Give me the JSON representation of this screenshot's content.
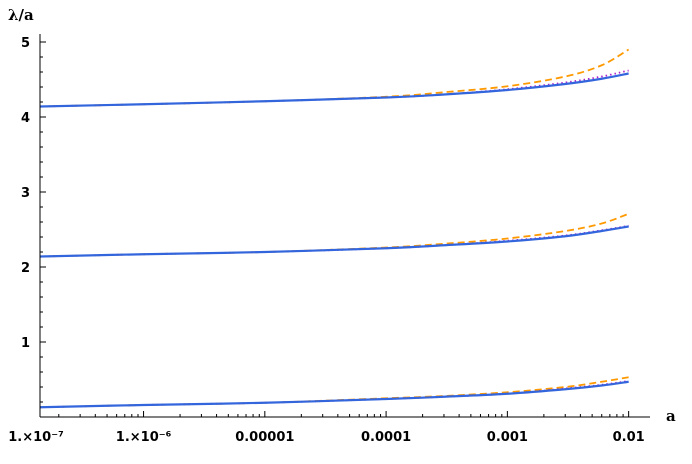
{
  "chart_data": {
    "type": "line",
    "title": "",
    "xlabel": "a",
    "ylabel": "λ/a",
    "xscale": "log",
    "xlim": [
      1.4e-07,
      0.0115
    ],
    "ylim": [
      0,
      5
    ],
    "grid": false,
    "legend": "none",
    "x_ticks": [
      {
        "value": 1e-07,
        "label": "1.×10⁻⁷"
      },
      {
        "value": 1e-06,
        "label": "1.×10⁻⁶"
      },
      {
        "value": 1e-05,
        "label": "0.00001"
      },
      {
        "value": 0.0001,
        "label": "0.0001"
      },
      {
        "value": 0.001,
        "label": "0.001"
      },
      {
        "value": 0.01,
        "label": "0.01"
      }
    ],
    "y_ticks": [
      {
        "value": 1,
        "label": "1"
      },
      {
        "value": 2,
        "label": "2"
      },
      {
        "value": 3,
        "label": "3"
      },
      {
        "value": 4,
        "label": "4"
      },
      {
        "value": 5,
        "label": "5"
      }
    ],
    "x": [
      1.4e-07,
      1e-06,
      1e-05,
      0.0001,
      0.0003,
      0.001,
      0.003,
      0.006,
      0.01
    ],
    "series": [
      {
        "style": "solid",
        "color": "#3366dd",
        "values": [
          0.13,
          0.16,
          0.19,
          0.24,
          0.27,
          0.31,
          0.37,
          0.42,
          0.47
        ]
      },
      {
        "style": "dotted",
        "color": "#aa22cc",
        "values": [
          0.13,
          0.16,
          0.19,
          0.24,
          0.27,
          0.31,
          0.38,
          0.43,
          0.48
        ]
      },
      {
        "style": "dashed",
        "color": "#ff9900",
        "values": [
          0.13,
          0.16,
          0.19,
          0.25,
          0.28,
          0.33,
          0.4,
          0.47,
          0.53
        ]
      },
      {
        "style": "solid",
        "color": "#3366dd",
        "values": [
          2.14,
          2.17,
          2.2,
          2.25,
          2.29,
          2.34,
          2.41,
          2.48,
          2.54
        ]
      },
      {
        "style": "dotted",
        "color": "#aa22cc",
        "values": [
          2.14,
          2.17,
          2.2,
          2.25,
          2.29,
          2.35,
          2.42,
          2.49,
          2.55
        ]
      },
      {
        "style": "dashed",
        "color": "#ff9900",
        "values": [
          2.14,
          2.17,
          2.2,
          2.26,
          2.31,
          2.38,
          2.48,
          2.58,
          2.71
        ]
      },
      {
        "style": "solid",
        "color": "#3366dd",
        "values": [
          4.14,
          4.17,
          4.21,
          4.26,
          4.3,
          4.36,
          4.44,
          4.51,
          4.58
        ]
      },
      {
        "style": "dotted",
        "color": "#aa22cc",
        "values": [
          4.14,
          4.17,
          4.21,
          4.26,
          4.3,
          4.37,
          4.46,
          4.54,
          4.62
        ]
      },
      {
        "style": "dashed",
        "color": "#ff9900",
        "values": [
          4.14,
          4.17,
          4.21,
          4.27,
          4.33,
          4.41,
          4.54,
          4.69,
          4.9
        ]
      }
    ]
  }
}
